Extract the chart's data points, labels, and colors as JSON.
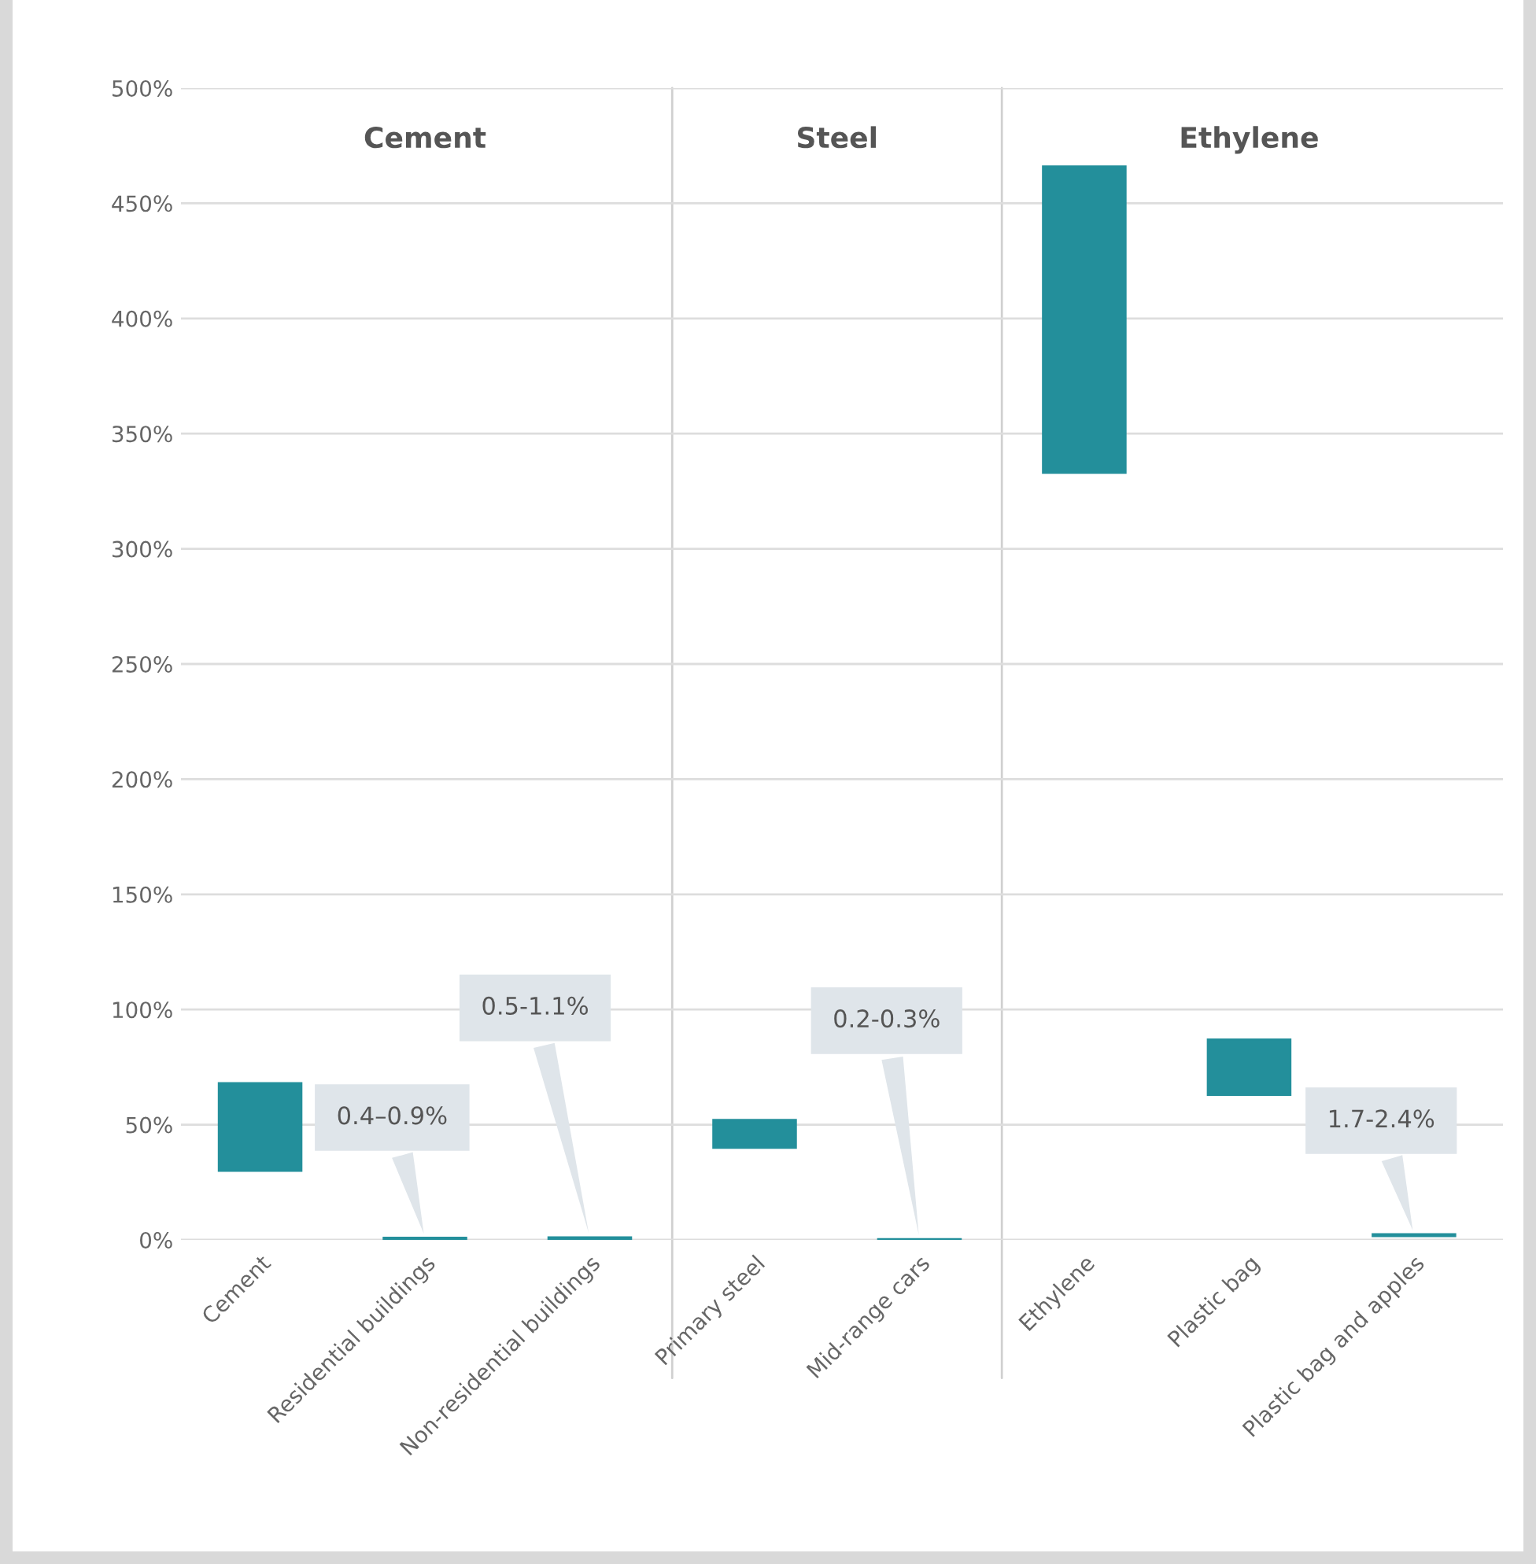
{
  "chart_data": {
    "type": "bar",
    "categories": [
      "Cement",
      "Residential buildings",
      "Non-residential buildings",
      "Primary steel",
      "Mid-range cars",
      "Ethylene",
      "Plastic bag",
      "Plastic bag and apples"
    ],
    "base": [
      30,
      0.4,
      0.5,
      40,
      0.2,
      333,
      63,
      1.7
    ],
    "values": [
      38,
      0.5,
      0.6,
      12,
      0.1,
      133,
      24,
      0.7
    ],
    "color": "#238f9b",
    "annotations": [
      "Cement",
      "Steel",
      "Ethylene",
      {
        "text": "0.4–0.9%",
        "x": "Residential buildings",
        "y": 0.9
      },
      {
        "text": "0.5-1.1%",
        "x": "Non-residential buildings",
        "y": 1.1
      },
      {
        "text": "0.2-0.3%",
        "x": "Mid-range cars",
        "y": 0.3
      },
      {
        "text": "1.7-2.4%",
        "x": "Plastic bag and apples",
        "y": 2.4
      }
    ],
    "ylim": [
      0,
      500
    ],
    "yticks": [
      {
        "value": 0,
        "label": "0%"
      },
      {
        "value": 50,
        "label": "50%"
      },
      {
        "value": 100,
        "label": "100%"
      },
      {
        "value": 150,
        "label": "150%"
      },
      {
        "value": 200,
        "label": "200%"
      },
      {
        "value": 250,
        "label": "250%"
      },
      {
        "value": 300,
        "label": "300%"
      },
      {
        "value": 350,
        "label": "350%"
      },
      {
        "value": 400,
        "label": "400%"
      },
      {
        "value": 450,
        "label": "450%"
      },
      {
        "value": 500,
        "label": "500%"
      }
    ],
    "grid": "y",
    "legend": false
  }
}
